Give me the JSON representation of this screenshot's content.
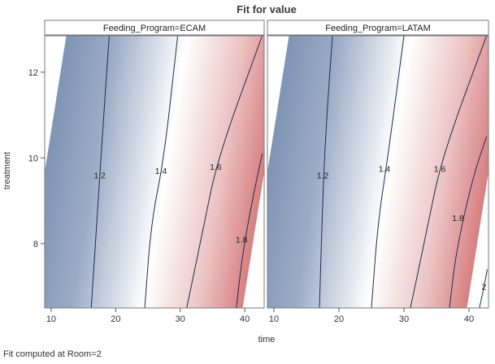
{
  "chart_data": {
    "type": "contour",
    "title": "Fit for value",
    "xlabel": "time",
    "ylabel": "treatment",
    "xlim": [
      9,
      43
    ],
    "ylim": [
      6.5,
      12.85
    ],
    "xticks": [
      10,
      20,
      30,
      40
    ],
    "yticks": [
      8,
      10,
      12
    ],
    "color_low": "#7f95b5",
    "color_mid": "#ffffff",
    "color_high": "#d77f80",
    "value_range": [
      1.05,
      2.1
    ],
    "panels": [
      {
        "strip_label": "Feeding_Program=ECAM",
        "contours": [
          {
            "level": 1.2,
            "label": "1.2",
            "label_pos": [
              17.5,
              9.6
            ],
            "points": [
              [
                16.2,
                6.5
              ],
              [
                17.3,
                9.0
              ],
              [
                18.0,
                10.7
              ],
              [
                19.0,
                12.85
              ]
            ]
          },
          {
            "level": 1.4,
            "label": "1.4",
            "label_pos": [
              27.0,
              9.7
            ],
            "points": [
              [
                24.5,
                6.5
              ],
              [
                25.5,
                8.5
              ],
              [
                27.5,
                10.0
              ],
              [
                29.6,
                12.85
              ]
            ]
          },
          {
            "level": 1.6,
            "label": "1.6",
            "label_pos": [
              35.5,
              9.8
            ],
            "points": [
              [
                31.0,
                6.5
              ],
              [
                33.5,
                8.3
              ],
              [
                35.8,
                10.0
              ],
              [
                42.7,
                12.85
              ]
            ]
          },
          {
            "level": 1.8,
            "label": "1.8",
            "label_pos": [
              39.5,
              8.1
            ],
            "points": [
              [
                38.7,
                6.5
              ],
              [
                39.5,
                7.6
              ],
              [
                41.0,
                8.9
              ],
              [
                42.7,
                10.1
              ]
            ]
          }
        ]
      },
      {
        "strip_label": "Feeding_Program=LATAM",
        "contours": [
          {
            "level": 1.2,
            "label": "1.2",
            "label_pos": [
              17.5,
              9.6
            ],
            "points": [
              [
                17.0,
                6.5
              ],
              [
                17.5,
                9.0
              ],
              [
                18.0,
                10.7
              ],
              [
                19.0,
                12.85
              ]
            ]
          },
          {
            "level": 1.4,
            "label": "1.4",
            "label_pos": [
              27.0,
              9.75
            ],
            "points": [
              [
                25.0,
                6.5
              ],
              [
                26.0,
                8.5
              ],
              [
                27.5,
                10.0
              ],
              [
                30.0,
                12.85
              ]
            ]
          },
          {
            "level": 1.6,
            "label": "1.6",
            "label_pos": [
              35.5,
              9.75
            ],
            "points": [
              [
                31.0,
                6.5
              ],
              [
                33.5,
                8.3
              ],
              [
                35.8,
                10.0
              ],
              [
                42.7,
                12.85
              ]
            ]
          },
          {
            "level": 1.8,
            "label": "1.8",
            "label_pos": [
              38.3,
              8.6
            ],
            "points": [
              [
                37.0,
                6.5
              ],
              [
                38.0,
                7.8
              ],
              [
                40.5,
                9.5
              ],
              [
                42.7,
                10.5
              ]
            ]
          },
          {
            "level": 2.0,
            "label": "2",
            "label_pos": [
              42.3,
              7.0
            ],
            "points": [
              [
                41.6,
                6.5
              ],
              [
                42.2,
                6.9
              ],
              [
                42.8,
                7.4
              ]
            ]
          }
        ]
      }
    ]
  },
  "footnote": "Fit computed at Room=2"
}
